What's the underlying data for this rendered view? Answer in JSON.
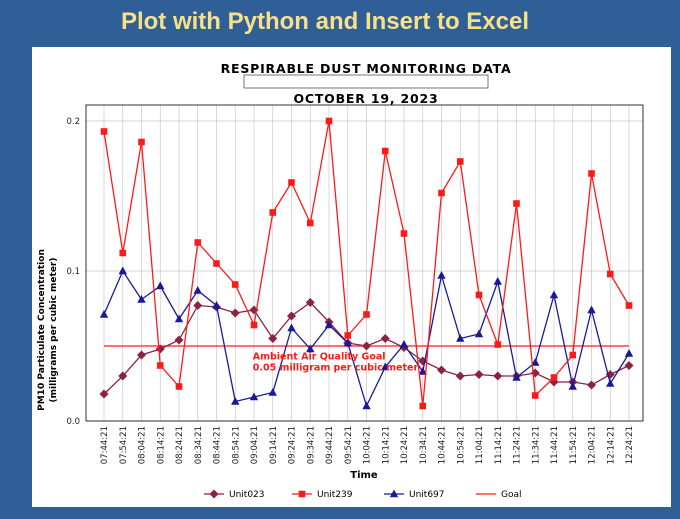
{
  "slide": {
    "title": "Plot with Python and Insert to Excel"
  },
  "chart_data": {
    "type": "line",
    "title": "RESPIRABLE DUST MONITORING DATA",
    "subtitle": "OCTOBER 19, 2023",
    "xlabel": "Time",
    "ylabel_line1": "PM10 Particulate Concentration",
    "ylabel_line2": "(milligrams per cubic meter)",
    "ylim": [
      0,
      0.2
    ],
    "yticks": [
      "0.0",
      "0.1",
      "0.2"
    ],
    "grid": true,
    "legend_position": "bottom",
    "categories": [
      "07:44:21",
      "07:54:21",
      "08:04:21",
      "08:14:21",
      "08:24:21",
      "08:34:21",
      "08:44:21",
      "08:54:21",
      "09:04:21",
      "09:14:21",
      "09:24:21",
      "09:34:21",
      "09:44:21",
      "09:54:21",
      "10:04:21",
      "10:14:21",
      "10:24:21",
      "10:34:21",
      "10:44:21",
      "10:54:21",
      "11:04:21",
      "11:14:21",
      "11:24:21",
      "11:34:21",
      "11:44:21",
      "11:54:21",
      "12:04:21",
      "12:14:21",
      "12:24:21"
    ],
    "series": [
      {
        "name": "Unit023",
        "color": "#8b2342",
        "marker": "diamond",
        "values": [
          0.018,
          0.03,
          0.044,
          0.048,
          0.054,
          0.077,
          0.076,
          0.072,
          0.074,
          0.055,
          0.07,
          0.079,
          0.066,
          0.052,
          0.05,
          0.055,
          0.049,
          0.04,
          0.034,
          0.03,
          0.031,
          0.03,
          0.03,
          0.032,
          0.026,
          0.026,
          0.024,
          0.031,
          0.037
        ]
      },
      {
        "name": "Unit239",
        "color": "#ff1a1a",
        "marker": "square",
        "values": [
          0.193,
          0.112,
          0.186,
          0.037,
          0.023,
          0.119,
          0.105,
          0.091,
          0.064,
          0.139,
          0.159,
          0.132,
          0.2,
          0.057,
          0.071,
          0.18,
          0.125,
          0.01,
          0.152,
          0.173,
          0.084,
          0.051,
          0.145,
          0.017,
          0.029,
          0.044,
          0.165,
          0.098,
          0.077
        ]
      },
      {
        "name": "Unit697",
        "color": "#1a1a99",
        "marker": "triangle",
        "values": [
          0.071,
          0.1,
          0.081,
          0.09,
          0.068,
          0.087,
          0.077,
          0.013,
          0.016,
          0.019,
          0.062,
          0.048,
          0.064,
          0.052,
          0.01,
          0.036,
          0.051,
          0.033,
          0.097,
          0.055,
          0.058,
          0.093,
          0.029,
          0.039,
          0.084,
          0.023,
          0.074,
          0.025,
          0.045
        ]
      },
      {
        "name": "Goal",
        "color": "#ff1a1a",
        "marker": "none",
        "values": [
          0.05,
          0.05,
          0.05,
          0.05,
          0.05,
          0.05,
          0.05,
          0.05,
          0.05,
          0.05,
          0.05,
          0.05,
          0.05,
          0.05,
          0.05,
          0.05,
          0.05,
          0.05,
          0.05,
          0.05,
          0.05,
          0.05,
          0.05,
          0.05,
          0.05,
          0.05,
          0.05,
          0.05,
          0.05
        ]
      }
    ],
    "annotation": {
      "line1": "Ambient Air Quality Goal",
      "line2": "0.05 milligram per cubic meter",
      "x": "09:14:21",
      "y": 0.041
    }
  }
}
